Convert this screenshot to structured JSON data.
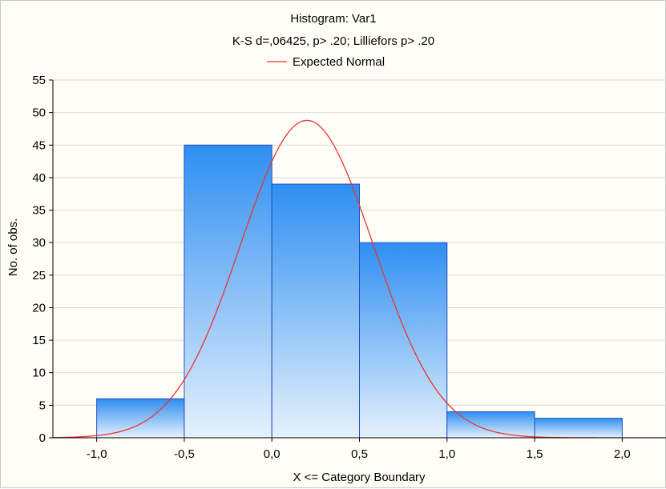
{
  "chart_data": {
    "type": "bar",
    "title": "Histogram: Var1",
    "subtitle": "K-S d=,06425, p> .20; Lilliefors p> .20",
    "legend": [
      {
        "label": "Expected Normal",
        "color": "#e8352f"
      }
    ],
    "legend_position": "top-center",
    "xlabel": "X <= Category Boundary",
    "ylabel": "No. of obs.",
    "xlim": [
      -1.25,
      2.25
    ],
    "ylim": [
      0,
      55
    ],
    "x_ticks": [
      "-1,0",
      "-0,5",
      "0,0",
      "0,5",
      "1,0",
      "1,5",
      "2,0"
    ],
    "y_ticks": [
      "0",
      "5",
      "10",
      "15",
      "20",
      "25",
      "30",
      "35",
      "40",
      "45",
      "50",
      "55"
    ],
    "grid": true,
    "bins": [
      {
        "from": -1.0,
        "to": -0.5,
        "count": 6
      },
      {
        "from": -0.5,
        "to": 0.0,
        "count": 45
      },
      {
        "from": 0.0,
        "to": 0.5,
        "count": 39
      },
      {
        "from": 0.5,
        "to": 1.0,
        "count": 30
      },
      {
        "from": 1.0,
        "to": 1.5,
        "count": 4
      },
      {
        "from": 1.5,
        "to": 2.0,
        "count": 3
      }
    ],
    "expected_normal": {
      "name": "Expected Normal",
      "mean": 0.2,
      "sd": 0.38,
      "peak": 48.8
    },
    "colors": {
      "bar_top": "#2e8ef2",
      "bar_bottom": "#e6f1fc",
      "bar_edge": "#1f4fc2",
      "curve": "#e8352f",
      "grid": "#d9d9d9",
      "background": "#fffef6"
    }
  }
}
